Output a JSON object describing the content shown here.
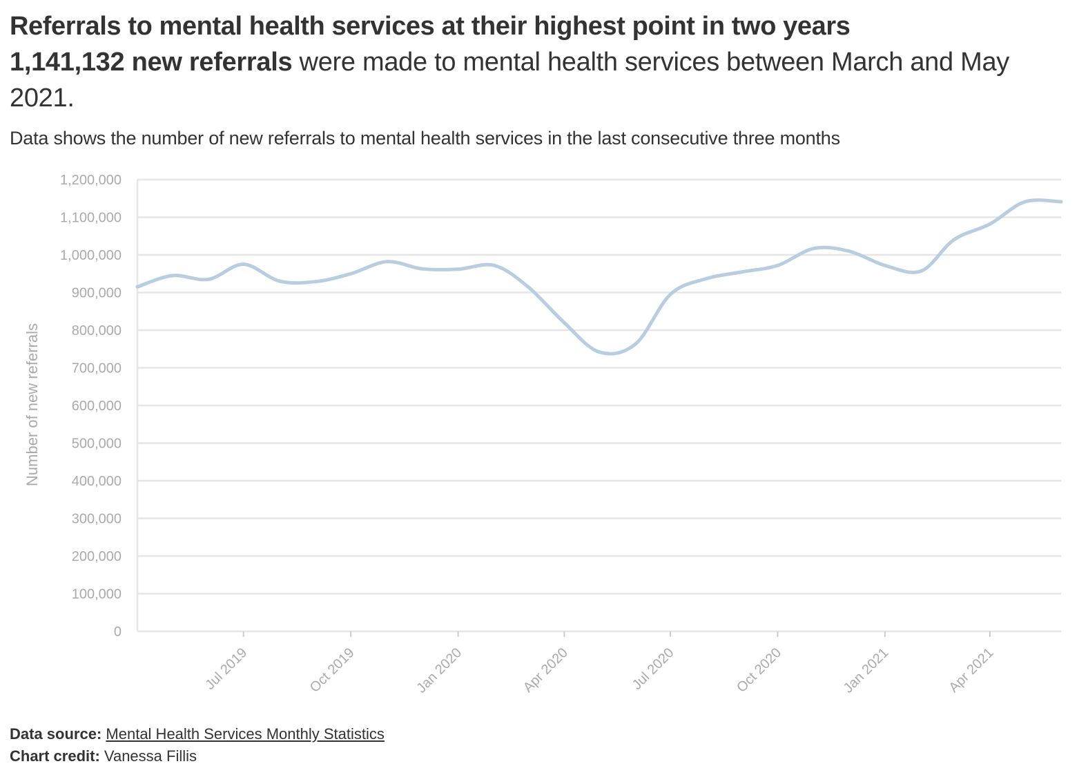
{
  "title": "Referrals to mental health services at their highest point in two years",
  "headline": {
    "bold": "1,141,132 new referrals",
    "rest": " were made to mental health services between March and May 2021."
  },
  "subtitle": "Data shows the number of new referrals to mental health services in the last consecutive three months",
  "footer": {
    "source_label": "Data source:",
    "source_link": "Mental Health Services Monthly Statistics",
    "credit_label": "Chart credit:",
    "credit_name": "Vanessa Fillis"
  },
  "colors": {
    "line": "#b9cde0",
    "grid": "#e6e6e6",
    "tick_text": "#aaaaaa"
  },
  "chart_data": {
    "type": "line",
    "ylabel": "Number of new referrals",
    "ylim": [
      0,
      1200000
    ],
    "yticks": [
      0,
      100000,
      200000,
      300000,
      400000,
      500000,
      600000,
      700000,
      800000,
      900000,
      1000000,
      1100000,
      1200000
    ],
    "ytick_labels": [
      "0",
      "100,000",
      "200,000",
      "300,000",
      "400,000",
      "500,000",
      "600,000",
      "700,000",
      "800,000",
      "900,000",
      "1,000,000",
      "1,100,000",
      "1,200,000"
    ],
    "xlim": [
      "2019-04-01",
      "2021-06-01"
    ],
    "xticks": [
      "2019-07-01",
      "2019-10-01",
      "2020-01-01",
      "2020-04-01",
      "2020-07-01",
      "2020-10-01",
      "2021-01-01",
      "2021-04-01"
    ],
    "xtick_labels": [
      "Jul 2019",
      "Oct 2019",
      "Jan 2020",
      "Apr 2020",
      "Jul 2020",
      "Oct 2020",
      "Jan 2021",
      "Apr 2021"
    ],
    "grid": true,
    "series": [
      {
        "x": [
          "2019-04-01",
          "2019-05-01",
          "2019-06-01",
          "2019-07-01",
          "2019-08-01",
          "2019-09-01",
          "2019-10-01",
          "2019-11-01",
          "2019-12-01",
          "2020-01-01",
          "2020-02-01",
          "2020-03-01",
          "2020-04-01",
          "2020-05-01",
          "2020-06-01",
          "2020-07-01",
          "2020-08-01",
          "2020-09-01",
          "2020-10-01",
          "2020-11-01",
          "2020-12-01",
          "2021-01-01",
          "2021-02-01",
          "2021-03-01",
          "2021-04-01",
          "2021-05-01",
          "2021-06-01"
        ],
        "values": [
          915000,
          945000,
          935000,
          975000,
          930000,
          929000,
          950000,
          982000,
          963000,
          962000,
          972000,
          915000,
          820000,
          742000,
          763000,
          895000,
          937000,
          955000,
          972000,
          1017000,
          1010000,
          972000,
          957000,
          1040000,
          1082000,
          1141132,
          1141132
        ]
      }
    ]
  }
}
